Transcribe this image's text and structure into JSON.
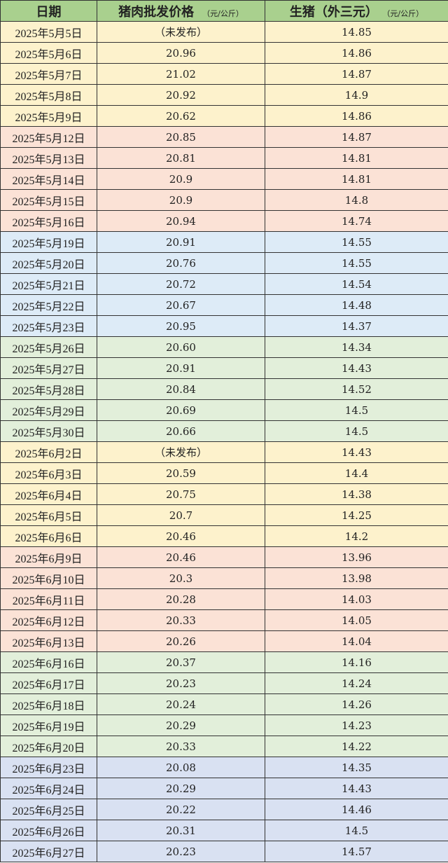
{
  "header": {
    "date": "日期",
    "pork": "猪肉批发价格",
    "pork_unit": "（元/公斤）",
    "hog": "生猪（外三元）",
    "hog_unit": "（元/公斤）",
    "bg": "#a9d08e"
  },
  "group_colors": [
    "#fdf2cc",
    "#fbe2d6",
    "#ddebf7",
    "#e2efda",
    "#fdf2cc",
    "#fbe2d6",
    "#e2efda",
    "#d9e1f2"
  ],
  "rows": [
    [
      "2025年5月5日",
      "（未发布）",
      "14.85"
    ],
    [
      "2025年5月6日",
      "20.96",
      "14.86"
    ],
    [
      "2025年5月7日",
      "21.02",
      "14.87"
    ],
    [
      "2025年5月8日",
      "20.92",
      "14.9"
    ],
    [
      "2025年5月9日",
      "20.62",
      "14.86"
    ],
    [
      "2025年5月12日",
      "20.85",
      "14.87"
    ],
    [
      "2025年5月13日",
      "20.81",
      "14.81"
    ],
    [
      "2025年5月14日",
      "20.9",
      "14.81"
    ],
    [
      "2025年5月15日",
      "20.9",
      "14.8"
    ],
    [
      "2025年5月16日",
      "20.94",
      "14.74"
    ],
    [
      "2025年5月19日",
      "20.91",
      "14.55"
    ],
    [
      "2025年5月20日",
      "20.76",
      "14.55"
    ],
    [
      "2025年5月21日",
      "20.72",
      "14.54"
    ],
    [
      "2025年5月22日",
      "20.67",
      "14.48"
    ],
    [
      "2025年5月23日",
      "20.95",
      "14.37"
    ],
    [
      "2025年5月26日",
      "20.60",
      "14.34"
    ],
    [
      "2025年5月27日",
      "20.91",
      "14.43"
    ],
    [
      "2025年5月28日",
      "20.84",
      "14.52"
    ],
    [
      "2025年5月29日",
      "20.69",
      "14.5"
    ],
    [
      "2025年5月30日",
      "20.66",
      "14.5"
    ],
    [
      "2025年6月2日",
      "（未发布）",
      "14.43"
    ],
    [
      "2025年6月3日",
      "20.59",
      "14.4"
    ],
    [
      "2025年6月4日",
      "20.75",
      "14.38"
    ],
    [
      "2025年6月5日",
      "20.7",
      "14.25"
    ],
    [
      "2025年6月6日",
      "20.46",
      "14.2"
    ],
    [
      "2025年6月9日",
      "20.46",
      "13.96"
    ],
    [
      "2025年6月10日",
      "20.3",
      "13.98"
    ],
    [
      "2025年6月11日",
      "20.28",
      "14.03"
    ],
    [
      "2025年6月12日",
      "20.33",
      "14.05"
    ],
    [
      "2025年6月13日",
      "20.26",
      "14.04"
    ],
    [
      "2025年6月16日",
      "20.37",
      "14.16"
    ],
    [
      "2025年6月17日",
      "20.23",
      "14.24"
    ],
    [
      "2025年6月18日",
      "20.24",
      "14.26"
    ],
    [
      "2025年6月19日",
      "20.29",
      "14.23"
    ],
    [
      "2025年6月20日",
      "20.33",
      "14.22"
    ],
    [
      "2025年6月23日",
      "20.08",
      "14.35"
    ],
    [
      "2025年6月24日",
      "20.29",
      "14.43"
    ],
    [
      "2025年6月25日",
      "20.22",
      "14.46"
    ],
    [
      "2025年6月26日",
      "20.31",
      "14.5"
    ],
    [
      "2025年6月27日",
      "20.23",
      "14.57"
    ]
  ]
}
